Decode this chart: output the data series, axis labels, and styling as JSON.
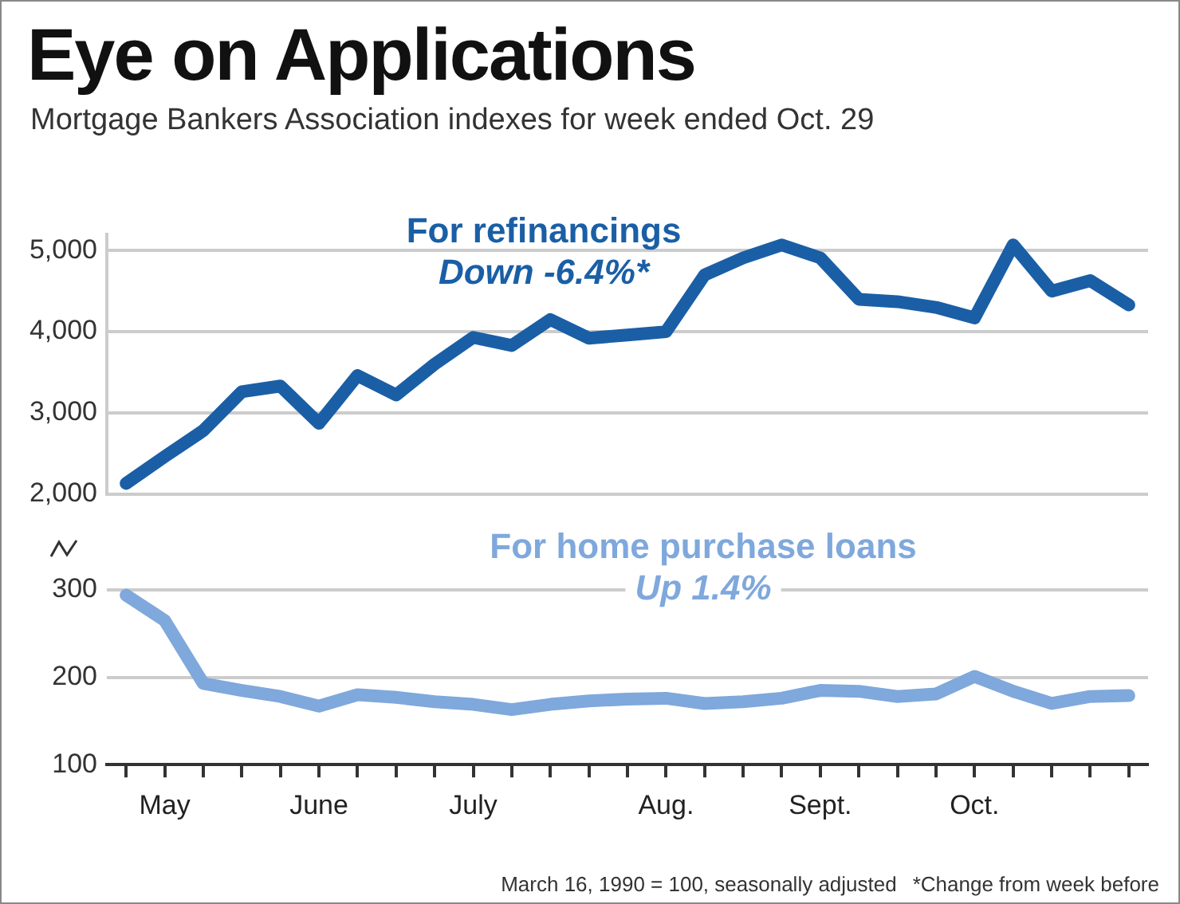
{
  "chart_data": [
    {
      "type": "line",
      "title": "Eye on Applications",
      "subtitle": "Mortgage Bankers Association indexes for week ended Oct. 29",
      "categories": [
        null,
        null,
        null,
        null,
        null,
        null,
        null,
        null,
        null,
        null,
        null,
        null,
        null,
        null,
        null,
        null,
        null,
        null,
        null,
        null,
        null,
        null,
        null,
        null,
        null,
        null,
        null
      ],
      "series": [
        {
          "name": "For refinancings",
          "color": "#1a5fa6",
          "values": [
            2130,
            2460,
            2780,
            3260,
            3330,
            2870,
            3460,
            3220,
            3600,
            3930,
            3830,
            4150,
            3920,
            3960,
            4000,
            4700,
            4910,
            5070,
            4910,
            4400,
            4370,
            4300,
            4170,
            5070,
            4500,
            4630,
            4330
          ]
        }
      ],
      "annotations": [
        "Down -6.4%*"
      ],
      "ylim": [
        2000,
        5200
      ],
      "yticks": [
        {
          "value": 2000,
          "label": "2,000"
        },
        {
          "value": 3000,
          "label": "3,000"
        },
        {
          "value": 4000,
          "label": "4,000"
        },
        {
          "value": 5000,
          "label": "5,000"
        }
      ],
      "grid": "y",
      "tick_labels": "y",
      "line_style": "solid",
      "marker": "none"
    },
    {
      "type": "line",
      "categories": [
        null,
        "May",
        null,
        null,
        null,
        "June",
        null,
        null,
        null,
        "July",
        null,
        null,
        null,
        null,
        "Aug.",
        null,
        null,
        null,
        "Sept.",
        null,
        null,
        null,
        "Oct.",
        null,
        null,
        null,
        null
      ],
      "series": [
        {
          "name": "For home purchase loans",
          "color": "#7fa8dc",
          "values": [
            294,
            265,
            193,
            185,
            178,
            167,
            180,
            177,
            172,
            169,
            163,
            169,
            173,
            175,
            176,
            170,
            172,
            176,
            185,
            184,
            178,
            181,
            201,
            184,
            170,
            178,
            179
          ]
        }
      ],
      "annotations": [
        "Up 1.4%",
        "March 16, 1990 = 100, seasonally adjusted",
        "*Change from week before"
      ],
      "ylim": [
        100,
        300
      ],
      "yticks": [
        100,
        200,
        300
      ],
      "grid": "y",
      "line_style": "solid",
      "marker": "none"
    }
  ]
}
